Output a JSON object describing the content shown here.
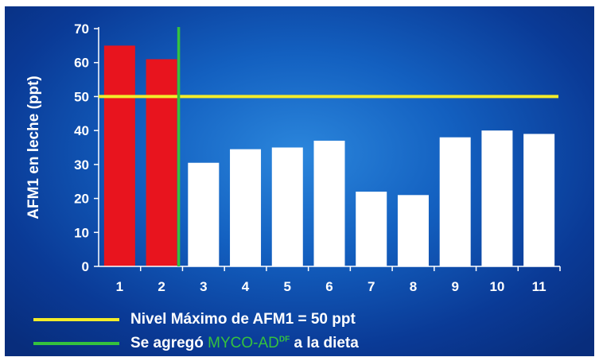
{
  "chart_data": {
    "type": "bar",
    "ylabel": "AFM1 en leche (ppt)",
    "xlabel": "",
    "ylim": [
      0,
      70
    ],
    "yticks": [
      0,
      10,
      20,
      30,
      40,
      50,
      60,
      70
    ],
    "categories": [
      "1",
      "2",
      "3",
      "4",
      "5",
      "6",
      "7",
      "8",
      "9",
      "10",
      "11"
    ],
    "values": [
      65,
      61,
      30.5,
      34.5,
      35,
      37,
      22,
      21,
      38,
      40,
      39
    ],
    "bar_colors": [
      "#e8141e",
      "#e8141e",
      "#ffffff",
      "#ffffff",
      "#ffffff",
      "#ffffff",
      "#ffffff",
      "#ffffff",
      "#ffffff",
      "#ffffff",
      "#ffffff"
    ],
    "reference_lines": {
      "max_level": {
        "y": 50,
        "color": "#f3ec2a"
      },
      "additive_start": {
        "after_category": "2",
        "color": "#35c23e"
      }
    },
    "grid": false
  },
  "legend": {
    "max_level": {
      "text": "Nivel Máximo de AFM1 = 50 ppt",
      "color": "#f3ec2a"
    },
    "additive": {
      "prefix": "Se agregó ",
      "product": "MYCO-AD",
      "superscript": "DF",
      "suffix": " a la dieta",
      "color": "#35c23e"
    }
  }
}
